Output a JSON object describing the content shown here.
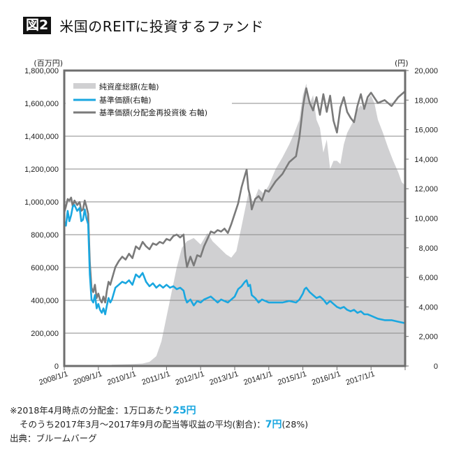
{
  "header": {
    "badge": "図2",
    "title": "米国のREITに投資するファンド"
  },
  "colors": {
    "area": "#d0d0d2",
    "base_price": "#1aa7e0",
    "reinvested": "#7a7a7a",
    "grid": "#8a8a8a",
    "frame": "#6e6e6e",
    "highlight": "#1aa7e0"
  },
  "chart_data": {
    "type": "line",
    "title": "米国のREITに投資するファンド",
    "left_axis": {
      "unit_label": "(百万円)",
      "range": [
        0,
        1800000
      ],
      "ticks": [
        "0",
        "200,000",
        "400,000",
        "600,000",
        "800,000",
        "1,000,000",
        "1,200,000",
        "1,400,000",
        "1,600,000",
        "1,800,000"
      ],
      "tick_values": [
        0,
        200000,
        400000,
        600000,
        800000,
        1000000,
        1200000,
        1400000,
        1600000,
        1800000
      ]
    },
    "right_axis": {
      "unit_label": "(円)",
      "range": [
        0,
        20000
      ],
      "ticks": [
        "0",
        "2,000",
        "4,000",
        "6,000",
        "8,000",
        "10,000",
        "12,000",
        "14,000",
        "16,000",
        "18,000",
        "20,000"
      ],
      "tick_values": [
        0,
        2000,
        4000,
        6000,
        8000,
        10000,
        12000,
        14000,
        16000,
        18000,
        20000
      ]
    },
    "x_axis": {
      "range": [
        2008.0,
        2018.0
      ],
      "ticks": [
        "2008/1/1",
        "2009/1/1",
        "2010/1/1",
        "2011/1/1",
        "2012/1/1",
        "2013/1/1",
        "2014/1/1",
        "2015/1/1",
        "2016/1/1",
        "2017/1/1"
      ],
      "tick_values": [
        2008,
        2009,
        2010,
        2011,
        2012,
        2013,
        2014,
        2015,
        2016,
        2017,
        2018
      ]
    },
    "grid": true,
    "legend_position": "top-left",
    "series": [
      {
        "name": "純資産総額(左軸)",
        "type": "area",
        "axis": "left",
        "x": [
          2008.0,
          2009.3,
          2009.4,
          2010.0,
          2010.3,
          2010.5,
          2010.7,
          2010.85,
          2011.0,
          2011.15,
          2011.3,
          2011.45,
          2011.6,
          2011.8,
          2012.0,
          2012.2,
          2012.35,
          2012.55,
          2012.75,
          2012.9,
          2013.05,
          2013.2,
          2013.3,
          2013.4,
          2013.55,
          2013.7,
          2013.85,
          2014.0,
          2014.2,
          2014.4,
          2014.6,
          2014.75,
          2014.9,
          2015.0,
          2015.1,
          2015.2,
          2015.3,
          2015.4,
          2015.5,
          2015.6,
          2015.7,
          2015.8,
          2015.9,
          2016.0,
          2016.1,
          2016.2,
          2016.3,
          2016.45,
          2016.6,
          2016.7,
          2016.8,
          2016.9,
          2017.0,
          2017.1,
          2017.2,
          2017.35,
          2017.5,
          2017.65,
          2017.8,
          2017.9,
          2018.0
        ],
        "values": [
          0,
          0,
          8000,
          12000,
          15000,
          25000,
          60000,
          150000,
          300000,
          450000,
          600000,
          720000,
          760000,
          780000,
          740000,
          810000,
          760000,
          720000,
          680000,
          660000,
          700000,
          850000,
          950000,
          1050000,
          1000000,
          1080000,
          1050000,
          1100000,
          1200000,
          1270000,
          1350000,
          1420000,
          1500000,
          1650000,
          1720000,
          1600000,
          1650000,
          1500000,
          1450000,
          1300000,
          1380000,
          1200000,
          1250000,
          1250000,
          1230000,
          1350000,
          1420000,
          1480000,
          1560000,
          1590000,
          1560000,
          1620000,
          1650000,
          1600000,
          1500000,
          1420000,
          1330000,
          1250000,
          1180000,
          1120000,
          1100000
        ]
      },
      {
        "name": "基準価額(右軸)",
        "type": "line",
        "axis": "right",
        "x": [
          2008.0,
          2008.05,
          2008.1,
          2008.15,
          2008.2,
          2008.25,
          2008.3,
          2008.38,
          2008.45,
          2008.5,
          2008.55,
          2008.6,
          2008.65,
          2008.7,
          2008.75,
          2008.8,
          2008.85,
          2008.9,
          2008.95,
          2009.0,
          2009.05,
          2009.1,
          2009.15,
          2009.2,
          2009.25,
          2009.3,
          2009.35,
          2009.4,
          2009.5,
          2009.6,
          2009.7,
          2009.8,
          2009.9,
          2010.0,
          2010.1,
          2010.2,
          2010.3,
          2010.4,
          2010.5,
          2010.6,
          2010.7,
          2010.8,
          2010.9,
          2011.0,
          2011.1,
          2011.2,
          2011.3,
          2011.4,
          2011.5,
          2011.55,
          2011.6,
          2011.7,
          2011.8,
          2011.9,
          2012.0,
          2012.1,
          2012.2,
          2012.3,
          2012.4,
          2012.5,
          2012.6,
          2012.7,
          2012.8,
          2012.9,
          2013.0,
          2013.1,
          2013.2,
          2013.3,
          2013.35,
          2013.4,
          2013.45,
          2013.5,
          2013.6,
          2013.7,
          2013.8,
          2013.9,
          2014.0,
          2014.2,
          2014.4,
          2014.6,
          2014.8,
          2014.9,
          2015.0,
          2015.05,
          2015.1,
          2015.2,
          2015.3,
          2015.4,
          2015.5,
          2015.6,
          2015.7,
          2015.8,
          2015.9,
          2016.0,
          2016.1,
          2016.2,
          2016.3,
          2016.4,
          2016.5,
          2016.6,
          2016.7,
          2016.8,
          2016.9,
          2017.0,
          2017.2,
          2017.4,
          2017.6,
          2017.8,
          2018.0
        ],
        "values": [
          9800,
          9500,
          10500,
          9800,
          10200,
          10800,
          10900,
          10500,
          10700,
          9800,
          9900,
          10600,
          10000,
          9600,
          6200,
          4500,
          4300,
          4800,
          3900,
          4200,
          3800,
          3600,
          3900,
          3500,
          4100,
          4600,
          4300,
          4500,
          5300,
          5500,
          5700,
          5600,
          5800,
          5500,
          6200,
          6000,
          6300,
          5700,
          5400,
          5600,
          5300,
          5500,
          5300,
          5500,
          5300,
          5400,
          5200,
          5300,
          5100,
          4600,
          4300,
          4500,
          4100,
          4400,
          4300,
          4500,
          4600,
          4700,
          4500,
          4300,
          4500,
          4400,
          4300,
          4500,
          4700,
          5200,
          5400,
          5700,
          5800,
          5400,
          5500,
          4800,
          4600,
          4300,
          4500,
          4400,
          4300,
          4300,
          4300,
          4400,
          4300,
          4500,
          4900,
          5200,
          5300,
          5000,
          4800,
          4600,
          4700,
          4500,
          4200,
          4400,
          4200,
          4000,
          3900,
          4000,
          3800,
          3700,
          3800,
          3600,
          3700,
          3500,
          3500,
          3400,
          3200,
          3100,
          3100,
          3000,
          2900
        ]
      },
      {
        "name": "基準価額(分配金再投資後 右軸)",
        "type": "line",
        "axis": "right",
        "x": [
          2008.0,
          2008.05,
          2008.1,
          2008.15,
          2008.2,
          2008.25,
          2008.3,
          2008.38,
          2008.45,
          2008.5,
          2008.55,
          2008.6,
          2008.65,
          2008.7,
          2008.75,
          2008.8,
          2008.85,
          2008.9,
          2008.95,
          2009.0,
          2009.05,
          2009.1,
          2009.15,
          2009.2,
          2009.25,
          2009.3,
          2009.35,
          2009.4,
          2009.5,
          2009.6,
          2009.7,
          2009.8,
          2009.9,
          2010.0,
          2010.1,
          2010.2,
          2010.3,
          2010.4,
          2010.5,
          2010.6,
          2010.7,
          2010.8,
          2010.9,
          2011.0,
          2011.1,
          2011.2,
          2011.3,
          2011.4,
          2011.5,
          2011.55,
          2011.6,
          2011.7,
          2011.8,
          2011.9,
          2012.0,
          2012.1,
          2012.2,
          2012.3,
          2012.4,
          2012.5,
          2012.6,
          2012.7,
          2012.8,
          2012.9,
          2013.0,
          2013.1,
          2013.2,
          2013.3,
          2013.35,
          2013.4,
          2013.45,
          2013.5,
          2013.6,
          2013.7,
          2013.8,
          2013.9,
          2014.0,
          2014.2,
          2014.4,
          2014.6,
          2014.8,
          2014.9,
          2015.0,
          2015.05,
          2015.1,
          2015.2,
          2015.3,
          2015.4,
          2015.5,
          2015.6,
          2015.7,
          2015.8,
          2015.9,
          2016.0,
          2016.1,
          2016.2,
          2016.3,
          2016.4,
          2016.5,
          2016.6,
          2016.7,
          2016.8,
          2016.9,
          2017.0,
          2017.2,
          2017.4,
          2017.6,
          2017.8,
          2018.0
        ],
        "values": [
          10400,
          10800,
          11300,
          11200,
          11400,
          10800,
          11200,
          10900,
          11100,
          10500,
          10600,
          11200,
          10800,
          10300,
          7000,
          5300,
          5000,
          5500,
          4600,
          4900,
          4500,
          4300,
          4700,
          4300,
          5100,
          5700,
          5500,
          5900,
          6700,
          7100,
          7400,
          7200,
          7600,
          7300,
          8100,
          7900,
          8400,
          8100,
          7900,
          8300,
          8200,
          8400,
          8300,
          8600,
          8500,
          8800,
          8900,
          8700,
          8900,
          7500,
          6700,
          7400,
          6800,
          7500,
          7400,
          8100,
          8600,
          9100,
          9000,
          9200,
          9100,
          9300,
          9000,
          9600,
          10300,
          11000,
          12100,
          12900,
          13300,
          12000,
          11500,
          10600,
          11300,
          11500,
          11200,
          11900,
          11800,
          12500,
          13000,
          13800,
          14200,
          15500,
          17500,
          18200,
          18800,
          17800,
          17300,
          18200,
          17000,
          18400,
          17200,
          18300,
          16600,
          15800,
          17500,
          18200,
          17200,
          16800,
          16500,
          17600,
          18400,
          17400,
          18200,
          18500,
          17800,
          18000,
          17600,
          18200,
          18600
        ]
      }
    ]
  },
  "notes": {
    "line1_prefix": "※2018年4月時点の分配金：1万口あたり",
    "line1_value": "25円",
    "line2_prefix": "そのうち2017年3月～2017年9月の配当等収益の平均(割合)：",
    "line2_value": "7円",
    "line2_suffix": "(28%)",
    "source": "出典：ブルームバーグ"
  }
}
